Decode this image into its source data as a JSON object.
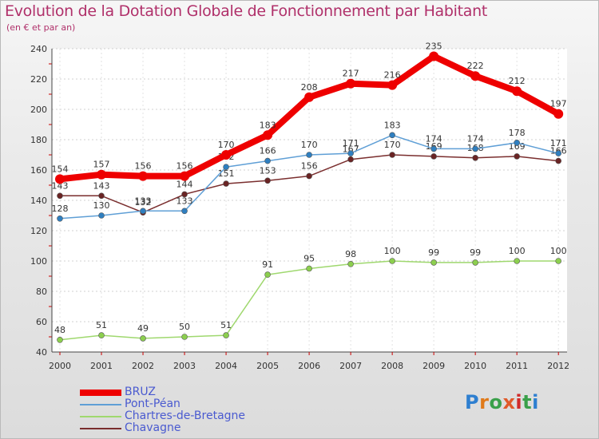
{
  "header": {
    "title": "Evolution de la Dotation Globale de Fonctionnement par Habitant",
    "subtitle": "(en € et par an)"
  },
  "logo": {
    "text": "Proxiti"
  },
  "chart_data": {
    "type": "line",
    "title": "Evolution de la Dotation Globale de Fonctionnement par Habitant",
    "subtitle": "(en € et par an)",
    "xlabel": "",
    "ylabel": "",
    "ylim": [
      40,
      240
    ],
    "yticks": [
      40,
      60,
      80,
      100,
      120,
      140,
      160,
      180,
      200,
      220,
      240
    ],
    "grid": true,
    "legend_position": "bottom-left",
    "categories": [
      "2000",
      "2001",
      "2002",
      "2003",
      "2004",
      "2005",
      "2006",
      "2007",
      "2008",
      "2009",
      "2010",
      "2011",
      "2012"
    ],
    "series": [
      {
        "name": "BRUZ",
        "color": "#ee0000",
        "values": [
          154,
          157,
          156,
          156,
          170,
          183,
          208,
          217,
          216,
          235,
          222,
          212,
          197
        ]
      },
      {
        "name": "Pont-Péan",
        "color": "#5f9fd6",
        "values": [
          128,
          130,
          133,
          133,
          162,
          166,
          170,
          171,
          183,
          174,
          174,
          178,
          171
        ]
      },
      {
        "name": "Chartres-de-Bretagne",
        "color": "#9fd86e",
        "values": [
          48,
          51,
          49,
          50,
          51,
          91,
          95,
          98,
          100,
          99,
          99,
          100,
          100
        ]
      },
      {
        "name": "Chavagne",
        "color": "#7a2e2e",
        "values": [
          143,
          143,
          132,
          144,
          151,
          153,
          156,
          167,
          170,
          169,
          168,
          169,
          166
        ]
      }
    ]
  }
}
